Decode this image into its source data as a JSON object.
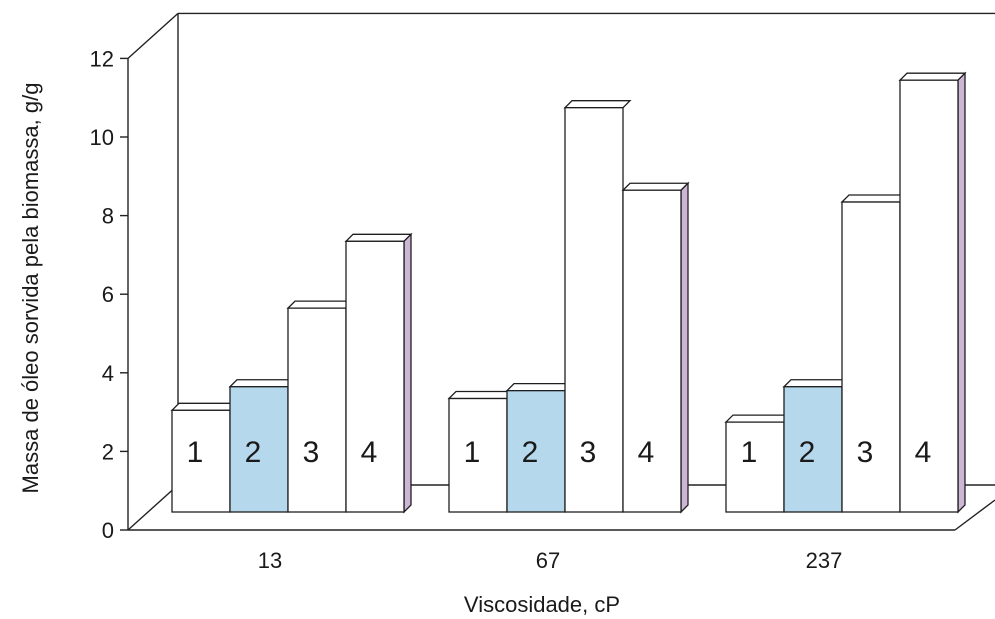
{
  "chart_data": {
    "type": "bar",
    "style": "3d-clustered",
    "categories": [
      "13",
      "67",
      "237"
    ],
    "series": [
      {
        "name": "1",
        "values": [
          3.3,
          3.6,
          3.0
        ],
        "color": "#ffffff"
      },
      {
        "name": "2",
        "values": [
          3.9,
          3.8,
          3.9
        ],
        "color": "#b5d8ec"
      },
      {
        "name": "3",
        "values": [
          5.9,
          11.0,
          8.6
        ],
        "color": "#ffffff"
      },
      {
        "name": "4",
        "values": [
          7.6,
          8.9,
          11.7
        ],
        "color": "#ffffff"
      }
    ],
    "title": "",
    "xlabel": "Viscosidade, cP",
    "ylabel": "Massa de óleo sorvida pela biomassa, g/g",
    "ylim": [
      0,
      12
    ],
    "yticks": [
      "0",
      "2",
      "4",
      "6",
      "8",
      "10",
      "12"
    ],
    "grid": false,
    "legend": "none"
  },
  "colors": {
    "edge": "#1f1f1f",
    "side_shade": "#cdb5d6",
    "highlight": "#b5d8ec"
  }
}
